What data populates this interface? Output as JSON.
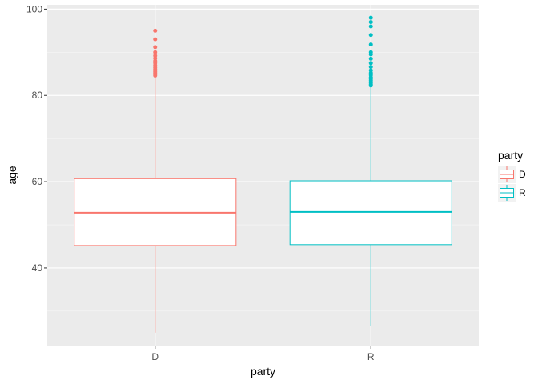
{
  "chart_data": {
    "type": "boxplot",
    "xlabel": "party",
    "ylabel": "age",
    "ylim": [
      22,
      101
    ],
    "y_ticks": [
      40,
      60,
      80,
      100
    ],
    "y_minor_ticks": [
      30,
      50,
      70,
      90
    ],
    "categories": [
      "D",
      "R"
    ],
    "grid": true,
    "background": "#ebebeb",
    "legend": {
      "title": "party",
      "position": "right",
      "entries": [
        {
          "label": "D",
          "color": "#f8766d"
        },
        {
          "label": "R",
          "color": "#00bfc4"
        }
      ]
    },
    "series": [
      {
        "category": "D",
        "color": "#f8766d",
        "whisker_low": 25,
        "q1": 45.2,
        "median": 52.8,
        "q3": 60.7,
        "whisker_high": 84.3,
        "outliers": [
          84.6,
          84.9,
          85.2,
          85.5,
          85.8,
          86.1,
          86.5,
          87.0,
          87.5,
          88.0,
          88.6,
          89.2,
          90.0,
          91.2,
          93.0,
          95.0
        ]
      },
      {
        "category": "R",
        "color": "#00bfc4",
        "whisker_low": 26.5,
        "q1": 45.4,
        "median": 53.0,
        "q3": 60.2,
        "whisker_high": 82.0,
        "outliers": [
          82.3,
          82.6,
          83.0,
          83.4,
          83.8,
          84.2,
          84.7,
          85.2,
          85.8,
          86.6,
          87.5,
          88.5,
          89.5,
          90.0,
          91.8,
          94.0,
          96.0,
          97.0,
          98.0
        ]
      }
    ]
  }
}
